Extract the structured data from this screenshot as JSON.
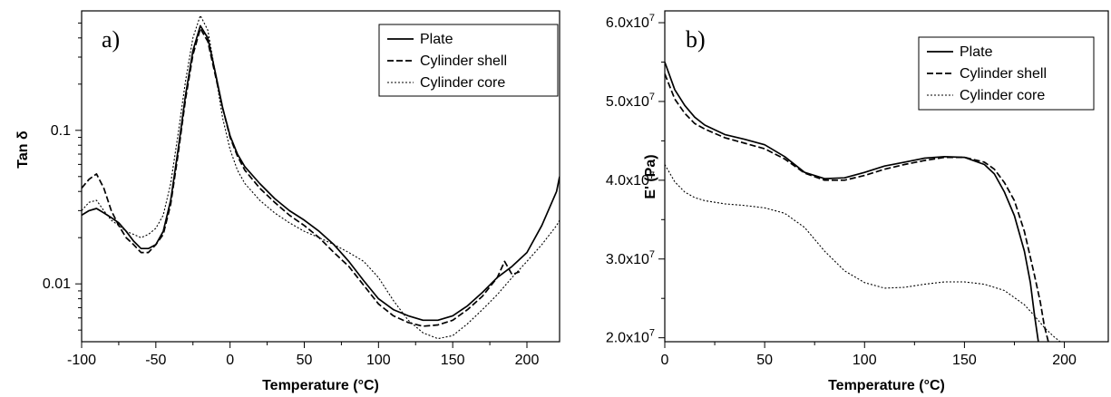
{
  "chart_data": [
    {
      "type": "line",
      "panel_label": "a)",
      "xlabel": "Temperature (°C)",
      "ylabel": "Tan δ",
      "xlim": [
        -100,
        222
      ],
      "ylim": [
        0.0042,
        0.6
      ],
      "yscale": "log",
      "xticks": [
        -100,
        -50,
        0,
        50,
        100,
        150,
        200
      ],
      "xtick_labels": [
        "-100",
        "-50",
        "0",
        "50",
        "100",
        "150",
        "200"
      ],
      "yticks": [
        0.01,
        0.1
      ],
      "ytick_labels": [
        "0.01",
        "0.1"
      ],
      "grid": false,
      "legend_position": "top-right",
      "series": [
        {
          "name": "Plate",
          "style": "solid",
          "x": [
            -100,
            -95,
            -90,
            -85,
            -80,
            -75,
            -70,
            -65,
            -60,
            -55,
            -50,
            -45,
            -40,
            -35,
            -30,
            -25,
            -20,
            -15,
            -10,
            -5,
            0,
            5,
            10,
            20,
            30,
            40,
            50,
            60,
            70,
            80,
            90,
            100,
            110,
            120,
            130,
            140,
            150,
            160,
            170,
            180,
            190,
            200,
            210,
            220,
            222
          ],
          "y": [
            0.028,
            0.03,
            0.031,
            0.029,
            0.027,
            0.025,
            0.022,
            0.019,
            0.017,
            0.017,
            0.018,
            0.022,
            0.035,
            0.075,
            0.17,
            0.33,
            0.48,
            0.4,
            0.24,
            0.14,
            0.092,
            0.07,
            0.058,
            0.045,
            0.036,
            0.03,
            0.026,
            0.022,
            0.018,
            0.014,
            0.0105,
            0.008,
            0.0068,
            0.0062,
            0.0058,
            0.0058,
            0.0062,
            0.0072,
            0.0088,
            0.011,
            0.013,
            0.016,
            0.024,
            0.04,
            0.05
          ]
        },
        {
          "name": "Cylinder shell",
          "style": "dashed",
          "x": [
            -100,
            -95,
            -90,
            -85,
            -80,
            -75,
            -70,
            -65,
            -60,
            -55,
            -50,
            -45,
            -40,
            -35,
            -30,
            -25,
            -20,
            -15,
            -10,
            -5,
            0,
            5,
            10,
            20,
            30,
            40,
            50,
            60,
            70,
            80,
            90,
            100,
            110,
            120,
            130,
            140,
            150,
            160,
            170,
            180,
            185,
            190,
            195
          ],
          "y": [
            0.042,
            0.048,
            0.052,
            0.042,
            0.03,
            0.024,
            0.02,
            0.018,
            0.016,
            0.016,
            0.018,
            0.021,
            0.033,
            0.07,
            0.16,
            0.31,
            0.46,
            0.38,
            0.23,
            0.14,
            0.09,
            0.068,
            0.055,
            0.042,
            0.034,
            0.028,
            0.024,
            0.02,
            0.016,
            0.013,
            0.0098,
            0.0074,
            0.0062,
            0.0056,
            0.0053,
            0.0054,
            0.0058,
            0.0068,
            0.0083,
            0.011,
            0.014,
            0.0115,
            0.012
          ]
        },
        {
          "name": "Cylinder core",
          "style": "dotted",
          "x": [
            -100,
            -95,
            -90,
            -85,
            -80,
            -75,
            -70,
            -65,
            -60,
            -55,
            -50,
            -45,
            -40,
            -35,
            -30,
            -25,
            -20,
            -15,
            -10,
            -5,
            0,
            5,
            10,
            20,
            30,
            40,
            50,
            60,
            70,
            80,
            90,
            100,
            110,
            120,
            130,
            140,
            150,
            160,
            170,
            180,
            190,
            200,
            210,
            220,
            222
          ],
          "y": [
            0.03,
            0.034,
            0.035,
            0.03,
            0.026,
            0.024,
            0.022,
            0.021,
            0.02,
            0.021,
            0.023,
            0.028,
            0.045,
            0.095,
            0.21,
            0.4,
            0.56,
            0.45,
            0.24,
            0.12,
            0.075,
            0.055,
            0.045,
            0.035,
            0.029,
            0.025,
            0.022,
            0.02,
            0.018,
            0.016,
            0.014,
            0.011,
            0.0078,
            0.0058,
            0.0048,
            0.0044,
            0.0046,
            0.0055,
            0.0068,
            0.0085,
            0.011,
            0.014,
            0.018,
            0.024,
            0.026
          ]
        }
      ]
    },
    {
      "type": "line",
      "panel_label": "b)",
      "xlabel": "Temperature (°C)",
      "ylabel": "E' (Pa)",
      "xlim": [
        0,
        222
      ],
      "ylim": [
        19500000,
        61500000
      ],
      "xticks": [
        0,
        50,
        100,
        150,
        200
      ],
      "xtick_labels": [
        "0",
        "50",
        "100",
        "150",
        "200"
      ],
      "yticks": [
        20000000,
        30000000,
        40000000,
        50000000,
        60000000
      ],
      "ytick_labels": [
        {
          "mantissa": "2.0x10",
          "exponent": "7"
        },
        {
          "mantissa": "3.0x10",
          "exponent": "7"
        },
        {
          "mantissa": "4.0x10",
          "exponent": "7"
        },
        {
          "mantissa": "5.0x10",
          "exponent": "7"
        },
        {
          "mantissa": "6.0x10",
          "exponent": "7"
        }
      ],
      "grid": false,
      "legend_position": "top-right",
      "series": [
        {
          "name": "Plate",
          "style": "solid",
          "x": [
            0,
            5,
            10,
            15,
            20,
            30,
            40,
            50,
            60,
            70,
            80,
            90,
            100,
            110,
            120,
            130,
            140,
            150,
            160,
            165,
            170,
            175,
            180,
            183,
            185,
            187
          ],
          "y": [
            55000000,
            51500000,
            49500000,
            48000000,
            47000000,
            45800000,
            45200000,
            44500000,
            43000000,
            41000000,
            40200000,
            40300000,
            41000000,
            41800000,
            42300000,
            42800000,
            43000000,
            42900000,
            42000000,
            40800000,
            38500000,
            35500000,
            31000000,
            27000000,
            23000000,
            19500000
          ]
        },
        {
          "name": "Cylinder shell",
          "style": "dashed",
          "x": [
            0,
            5,
            10,
            15,
            20,
            30,
            40,
            50,
            60,
            70,
            80,
            90,
            100,
            110,
            120,
            130,
            140,
            150,
            160,
            165,
            170,
            175,
            180,
            185,
            188,
            190,
            192
          ],
          "y": [
            53500000,
            50300000,
            48500000,
            47200000,
            46500000,
            45400000,
            44700000,
            44000000,
            42700000,
            40900000,
            40000000,
            40000000,
            40600000,
            41400000,
            42000000,
            42500000,
            42900000,
            42900000,
            42300000,
            41400000,
            39700000,
            37400000,
            33500000,
            28000000,
            24500000,
            21500000,
            19500000
          ]
        },
        {
          "name": "Cylinder core",
          "style": "dotted",
          "x": [
            0,
            5,
            10,
            15,
            20,
            30,
            40,
            50,
            60,
            70,
            80,
            90,
            100,
            110,
            120,
            130,
            140,
            150,
            160,
            170,
            180,
            185,
            190,
            195,
            198
          ],
          "y": [
            42000000,
            39800000,
            38500000,
            37800000,
            37400000,
            37000000,
            36800000,
            36500000,
            35800000,
            34000000,
            31000000,
            28500000,
            27000000,
            26300000,
            26400000,
            26800000,
            27100000,
            27100000,
            26800000,
            26000000,
            24200000,
            22800000,
            21300000,
            20100000,
            19500000
          ]
        }
      ]
    }
  ]
}
